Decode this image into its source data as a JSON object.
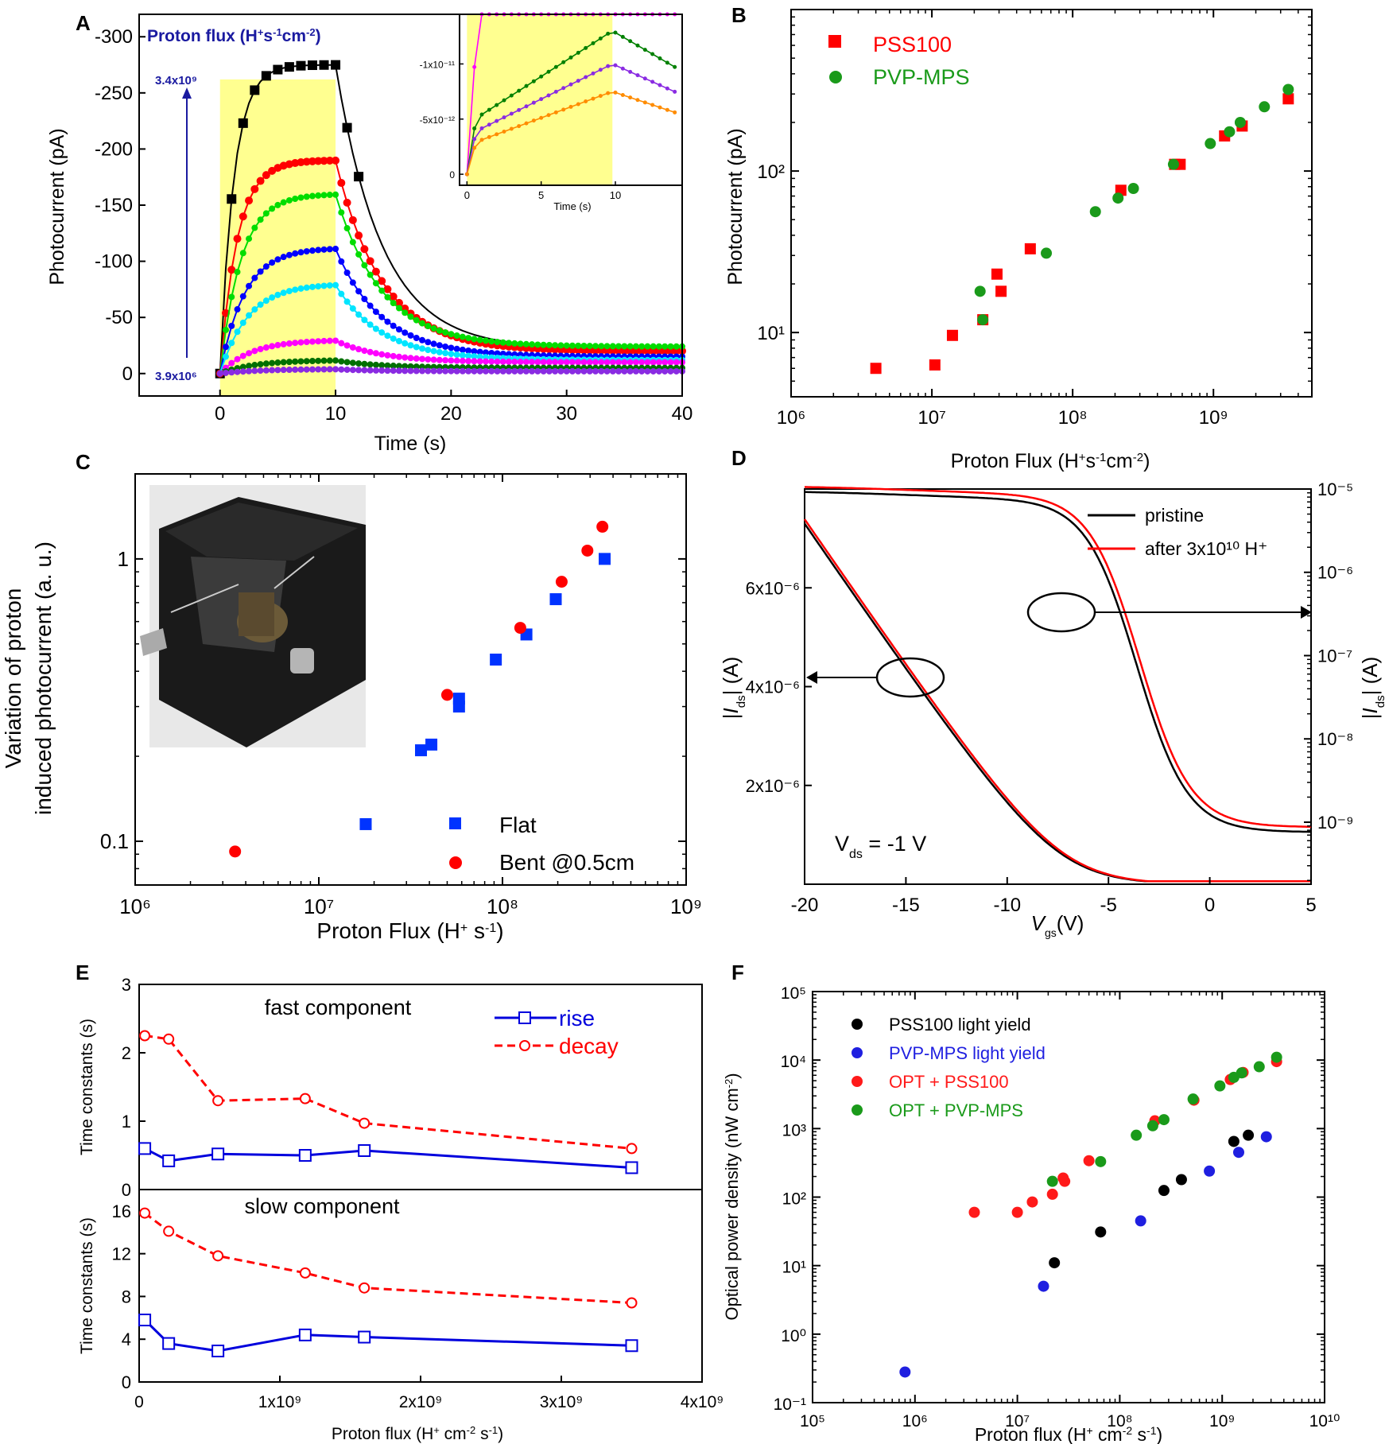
{
  "panel_labels": [
    "A",
    "B",
    "C",
    "D",
    "E",
    "F"
  ],
  "chart_data": [
    {
      "panel": "A",
      "type": "line",
      "xlabel": "Time (s)",
      "ylabel": "Photocurrent (pA)",
      "annotation_title": "Proton flux (H+s-1cm-2)",
      "flux_high": "3.4x10⁹",
      "flux_low": "3.9x10⁶",
      "xlim": [
        -7,
        40
      ],
      "ylim": [
        -320,
        20
      ],
      "x_ticks": [
        "0",
        "10",
        "20",
        "30",
        "40"
      ],
      "y_ticks": [
        "-300",
        "-250",
        "-200",
        "-150",
        "-100",
        "-50",
        "0"
      ],
      "highlight_interval": [
        0,
        10
      ],
      "series": [
        {
          "color": "#000000",
          "plateau": -275,
          "tail": -22
        },
        {
          "color": "#ff0000",
          "plateau": -190,
          "tail": -20
        },
        {
          "color": "#00dd00",
          "plateau": -160,
          "tail": -24
        },
        {
          "color": "#0000ff",
          "plateau": -112,
          "tail": -15
        },
        {
          "color": "#00e5ff",
          "plateau": -80,
          "tail": -12
        },
        {
          "color": "#ff00ff",
          "plateau": -30,
          "tail": -10
        },
        {
          "color": "#007000",
          "plateau": -12,
          "tail": -5
        },
        {
          "color": "#8a2be2",
          "plateau": -4,
          "tail": -2
        }
      ],
      "inset": {
        "xlabel": "Time (s)",
        "x_ticks": [
          "0",
          "5",
          "10"
        ],
        "y_ticks": [
          "-1x10⁻¹¹",
          "-5x10⁻¹²",
          "0"
        ],
        "series": [
          {
            "color": "#ff00ff",
            "peak": -3.5e-11
          },
          {
            "color": "#008000",
            "peak": -1.3e-11
          },
          {
            "color": "#8a2be2",
            "peak": -1e-11
          },
          {
            "color": "#ff8c00",
            "peak": -7.5e-12
          }
        ]
      }
    },
    {
      "panel": "B",
      "type": "scatter",
      "xlabel": "Proton Flux (H+s-1cm-2)",
      "ylabel": "Photocurrent (pA)",
      "xscale": "log",
      "yscale": "log",
      "xlim": [
        1000000.0,
        5000000000.0
      ],
      "ylim": [
        4,
        1000
      ],
      "x_ticks": [
        "10⁶",
        "10⁷",
        "10⁸",
        "10⁹"
      ],
      "y_ticks": [
        "10¹",
        "10²"
      ],
      "legend": "top-left",
      "series": [
        {
          "name": "PSS100",
          "color": "#ff0000",
          "marker": "square",
          "points": [
            [
              4000000.0,
              6
            ],
            [
              10500000.0,
              6.3
            ],
            [
              14000000.0,
              9.6
            ],
            [
              23000000.0,
              12
            ],
            [
              29000000.0,
              23
            ],
            [
              31000000.0,
              18
            ],
            [
              50000000.0,
              33
            ],
            [
              220000000.0,
              76
            ],
            [
              530000000.0,
              110
            ],
            [
              580000000.0,
              110
            ],
            [
              1200000000.0,
              165
            ],
            [
              1600000000.0,
              190
            ],
            [
              3400000000.0,
              280
            ]
          ]
        },
        {
          "name": "PVP-MPS",
          "color": "#1a9a1a",
          "marker": "circle",
          "points": [
            [
              22000000.0,
              18
            ],
            [
              23000000.0,
              12
            ],
            [
              65000000.0,
              31
            ],
            [
              145000000.0,
              56
            ],
            [
              210000000.0,
              68
            ],
            [
              270000000.0,
              78
            ],
            [
              520000000.0,
              110
            ],
            [
              950000000.0,
              148
            ],
            [
              1300000000.0,
              175
            ],
            [
              1550000000.0,
              200
            ],
            [
              2300000000.0,
              250
            ],
            [
              3400000000.0,
              320
            ]
          ]
        }
      ]
    },
    {
      "panel": "C",
      "type": "scatter",
      "xlabel": "Proton Flux (H+ s-1)",
      "ylabel_line1": "Variation of proton",
      "ylabel_line2": "induced photocurrent (a. u.)",
      "xscale": "log",
      "yscale": "log",
      "xlim": [
        1000000.0,
        1000000000.0
      ],
      "ylim": [
        0.07,
        2
      ],
      "x_ticks": [
        "10⁶",
        "10⁷",
        "10⁸",
        "10⁹"
      ],
      "y_ticks": [
        "0.1",
        "1"
      ],
      "legend": "bottom-right",
      "series": [
        {
          "name": "Flat",
          "color": "#0033ff",
          "marker": "square",
          "points": [
            [
              18000000.0,
              0.115
            ],
            [
              36000000.0,
              0.21
            ],
            [
              41000000.0,
              0.22
            ],
            [
              58000000.0,
              0.3
            ],
            [
              58000000.0,
              0.32
            ],
            [
              92000000.0,
              0.44
            ],
            [
              135000000.0,
              0.54
            ],
            [
              195000000.0,
              0.72
            ],
            [
              360000000.0,
              1.0
            ]
          ]
        },
        {
          "name": "Bent @0.5cm",
          "color": "#ff0000",
          "marker": "circle",
          "points": [
            [
              3500000.0,
              0.092
            ],
            [
              50000000.0,
              0.33
            ],
            [
              125000000.0,
              0.57
            ],
            [
              210000000.0,
              0.83
            ],
            [
              290000000.0,
              1.07
            ],
            [
              350000000.0,
              1.3
            ]
          ]
        }
      ]
    },
    {
      "panel": "D",
      "type": "line",
      "xlabel": "Vgs (V)",
      "ylabel_left": "|Ids| (A)",
      "ylabel_right": "|Ids| (A)",
      "xlim": [
        -20,
        5
      ],
      "x_ticks": [
        "-20",
        "-15",
        "-10",
        "-5",
        "0",
        "5"
      ],
      "y_ticks_left": [
        "2x10⁻⁶",
        "4x10⁻⁶",
        "6x10⁻⁶"
      ],
      "y_ticks_right": [
        "10⁻⁹",
        "10⁻⁸",
        "10⁻⁷",
        "10⁻⁶",
        "10⁻⁵"
      ],
      "annotation": "Vds = -1 V",
      "legend": "top-right",
      "series": [
        {
          "name": "pristine",
          "color": "#000000"
        },
        {
          "name": "after 3x10¹⁰ H⁺",
          "color": "#ff0000"
        }
      ]
    },
    {
      "panel": "E",
      "type": "line",
      "xlabel": "Proton flux (H+ cm-2 s-1)",
      "x_ticks": [
        "0",
        "1x10⁹",
        "2x10⁹",
        "3x10⁹",
        "4x10⁹"
      ],
      "xlim": [
        0,
        4000000000.0
      ],
      "top": {
        "title": "fast component",
        "ylabel": "Time constants (s)",
        "ylim": [
          0,
          3
        ],
        "y_ticks": [
          "0",
          "1",
          "2",
          "3"
        ],
        "x": [
          40000000.0,
          210000000.0,
          560000000.0,
          1180000000.0,
          1600000000.0,
          3500000000.0
        ],
        "series": [
          {
            "name": "rise",
            "color": "#0000dd",
            "values": [
              0.6,
              0.42,
              0.52,
              0.5,
              0.57,
              0.32
            ]
          },
          {
            "name": "decay",
            "color": "#ff0000",
            "values": [
              2.25,
              2.2,
              1.3,
              1.33,
              0.97,
              0.6
            ]
          }
        ]
      },
      "bottom": {
        "title": "slow component",
        "ylabel": "Time constants (s)",
        "ylim": [
          0,
          18
        ],
        "y_ticks": [
          "0",
          "4",
          "8",
          "12",
          "16"
        ],
        "x": [
          40000000.0,
          210000000.0,
          560000000.0,
          1180000000.0,
          1600000000.0,
          3500000000.0
        ],
        "series": [
          {
            "name": "rise",
            "color": "#0000dd",
            "values": [
              5.8,
              3.6,
              2.9,
              4.4,
              4.2,
              3.4
            ]
          },
          {
            "name": "decay",
            "color": "#ff0000",
            "values": [
              15.8,
              14.1,
              11.8,
              10.2,
              8.8,
              7.4
            ]
          }
        ]
      }
    },
    {
      "panel": "F",
      "type": "scatter",
      "xlabel": "Proton flux (H+ cm-2 s-1)",
      "ylabel": "Optical power density (nW cm-2)",
      "xscale": "log",
      "yscale": "log",
      "xlim": [
        100000.0,
        10000000000.0
      ],
      "ylim": [
        0.1,
        100000.0
      ],
      "x_ticks": [
        "10⁵",
        "10⁶",
        "10⁷",
        "10⁸",
        "10⁹",
        "10¹⁰"
      ],
      "y_ticks": [
        "10⁻¹",
        "10⁰",
        "10¹",
        "10²",
        "10³",
        "10⁴",
        "10⁵"
      ],
      "legend": "top-left",
      "series": [
        {
          "name": "PSS100 light yield",
          "color": "#000000",
          "points": [
            [
              23000000.0,
              11
            ],
            [
              65000000.0,
              31
            ],
            [
              270000000.0,
              125
            ],
            [
              400000000.0,
              180
            ],
            [
              1300000000.0,
              650
            ],
            [
              1800000000.0,
              800
            ]
          ]
        },
        {
          "name": "PVP-MPS light yield",
          "color": "#1f1fe0",
          "points": [
            [
              800000.0,
              0.28
            ],
            [
              18000000.0,
              5
            ],
            [
              160000000.0,
              45
            ],
            [
              750000000.0,
              240
            ],
            [
              1450000000.0,
              450
            ],
            [
              2700000000.0,
              760
            ]
          ]
        },
        {
          "name": "OPT + PSS100",
          "color": "#ff1a1a",
          "points": [
            [
              3800000.0,
              60
            ],
            [
              10000000.0,
              60
            ],
            [
              14000000.0,
              85
            ],
            [
              22000000.0,
              110
            ],
            [
              28000000.0,
              190
            ],
            [
              29000000.0,
              170
            ],
            [
              50000000.0,
              340
            ],
            [
              220000000.0,
              1300
            ],
            [
              530000000.0,
              2600
            ],
            [
              1200000000.0,
              5200
            ],
            [
              1600000000.0,
              6600
            ],
            [
              3400000000.0,
              9500
            ]
          ]
        },
        {
          "name": "OPT + PVP-MPS",
          "color": "#1a9a1a",
          "points": [
            [
              22000000.0,
              170
            ],
            [
              65000000.0,
              330
            ],
            [
              145000000.0,
              800
            ],
            [
              210000000.0,
              1100
            ],
            [
              270000000.0,
              1350
            ],
            [
              520000000.0,
              2700
            ],
            [
              950000000.0,
              4200
            ],
            [
              1300000000.0,
              5600
            ],
            [
              1550000000.0,
              6500
            ],
            [
              2300000000.0,
              8000
            ],
            [
              3400000000.0,
              11000
            ]
          ]
        }
      ]
    }
  ]
}
